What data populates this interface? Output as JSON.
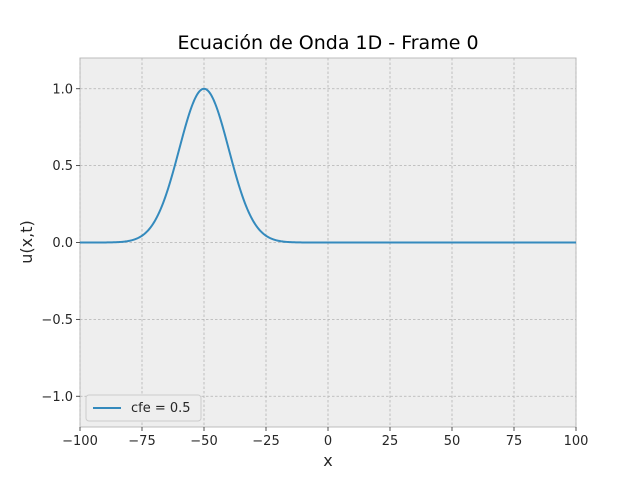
{
  "chart_data": {
    "type": "line",
    "title": "Ecuación de Onda 1D - Frame 0",
    "xlabel": "x",
    "ylabel": "u(x,t)",
    "xlim": [
      -100,
      100
    ],
    "ylim": [
      -1.2,
      1.2
    ],
    "xticks": [
      -100,
      -75,
      -50,
      -25,
      0,
      25,
      50,
      75,
      100
    ],
    "xtick_labels": [
      "−100",
      "−75",
      "−50",
      "−25",
      "0",
      "25",
      "50",
      "75",
      "100"
    ],
    "yticks": [
      -1.0,
      -0.5,
      0.0,
      0.5,
      1.0
    ],
    "ytick_labels": [
      "−1.0",
      "−0.5",
      "0.0",
      "0.5",
      "1.0"
    ],
    "grid": true,
    "legend_position": "lower-left",
    "series": [
      {
        "name": "cfe = 0.5",
        "color": "#348ABD",
        "function": "gaussian",
        "center": -50,
        "amplitude": 1.0,
        "sigma": 10
      }
    ],
    "colors": {
      "plot_background": "#EEEEEE",
      "grid": "#B2B2B2",
      "line": "#348ABD"
    }
  }
}
